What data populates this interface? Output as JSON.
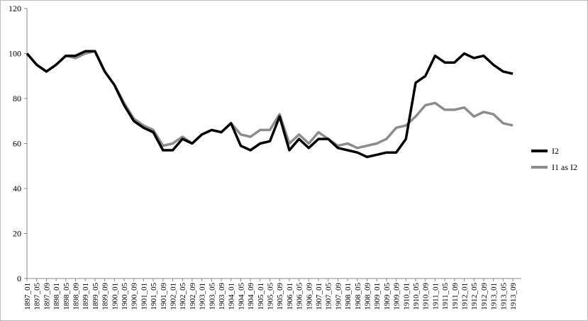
{
  "chart_data": {
    "type": "line",
    "categories": [
      "1897_01",
      "1897_05",
      "1897_09",
      "1898_01",
      "1898_05",
      "1898_09",
      "1899_01",
      "1899_05",
      "1899_09",
      "1900_01",
      "1900_05",
      "1900_09",
      "1901_01",
      "1901_05",
      "1901_09",
      "1902_01",
      "1902_05",
      "1902_09",
      "1903_01",
      "1903_05",
      "1903_09",
      "1904_01",
      "1904_05",
      "1904_09",
      "1905_01",
      "1905_05",
      "1905_09",
      "1906_01",
      "1906_05",
      "1906_09",
      "1907_01",
      "1907_05",
      "1907_09",
      "1908_01",
      "1908_05",
      "1908_09",
      "1909_01",
      "1909_05",
      "1909_09",
      "1910_01",
      "1910_05",
      "1910_09",
      "1911_01",
      "1911_05",
      "1911_09",
      "1912_01",
      "1912_05",
      "1912_09",
      "1913_01",
      "1913_05",
      "1913_09"
    ],
    "series": [
      {
        "name": "I2",
        "color": "#000000",
        "values": [
          100,
          95,
          92,
          95,
          99,
          99,
          101,
          101,
          92,
          86,
          77,
          70,
          67,
          65,
          57,
          57,
          62,
          60,
          64,
          66,
          65,
          69,
          59,
          57,
          60,
          61,
          72,
          57,
          62,
          58,
          62,
          62,
          58,
          57,
          56,
          54,
          55,
          56,
          56,
          62,
          87,
          90,
          99,
          96,
          96,
          100,
          98,
          99,
          95,
          92,
          91
        ]
      },
      {
        "name": "I1 as I2",
        "color": "#8c8c8c",
        "values": [
          100,
          95,
          92,
          95,
          99,
          98,
          100,
          101,
          92,
          86,
          78,
          71,
          68,
          66,
          59,
          60,
          63,
          60,
          64,
          66,
          65,
          69,
          64,
          63,
          66,
          66,
          73,
          60,
          64,
          60,
          65,
          62,
          59,
          60,
          58,
          59,
          60,
          62,
          67,
          68,
          72,
          77,
          78,
          75,
          75,
          76,
          72,
          74,
          73,
          69,
          68
        ]
      }
    ],
    "ylim": [
      0,
      120
    ],
    "yticks": [
      0,
      20,
      40,
      60,
      80,
      100,
      120
    ],
    "grid": false,
    "legend": "right"
  }
}
